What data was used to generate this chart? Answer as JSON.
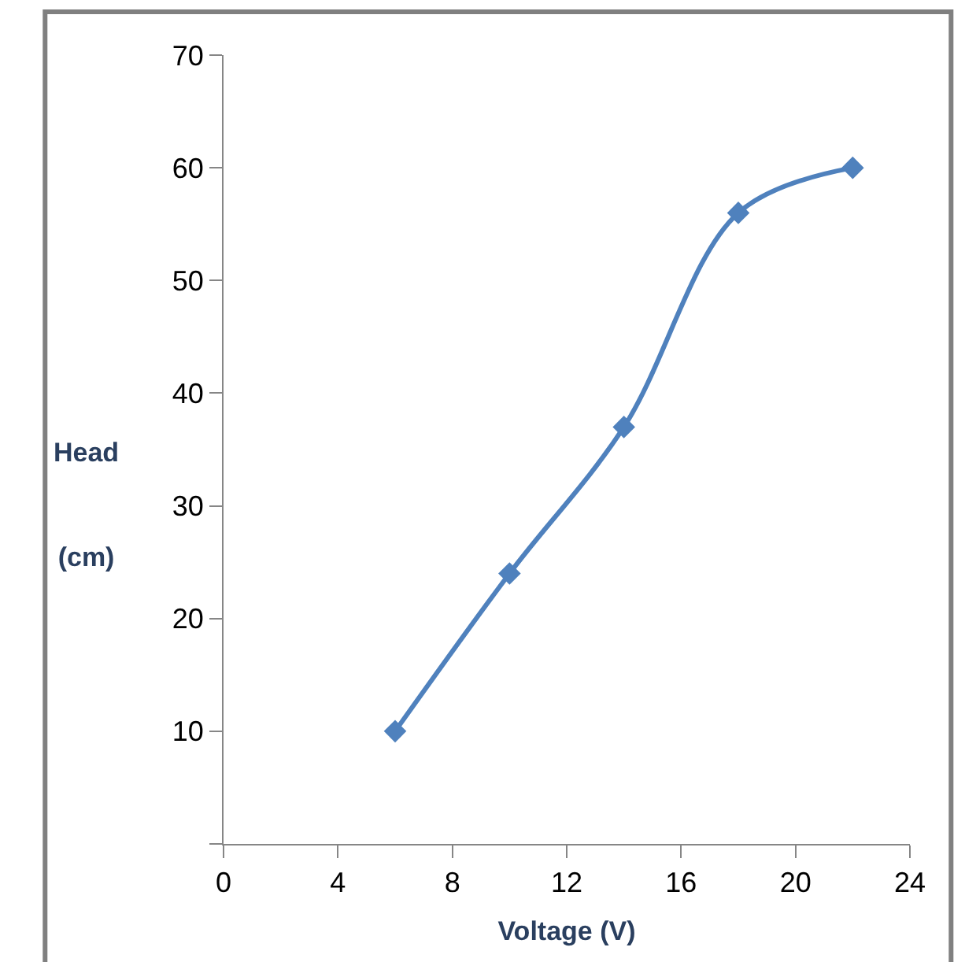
{
  "chart_data": {
    "type": "line",
    "xlabel": "Voltage (V)",
    "ylabel": "Head\n(cm)",
    "x": [
      6,
      10,
      14,
      18,
      22
    ],
    "series": [
      {
        "color": "#4f81bd",
        "values": [
          10,
          24,
          37,
          56,
          60
        ]
      }
    ],
    "xlim": [
      0,
      24
    ],
    "xticks": [
      0,
      4,
      8,
      12,
      16,
      20,
      24
    ],
    "ylim": [
      0,
      70
    ],
    "yticks": [
      {
        "value": 0,
        "label": null
      },
      10,
      20,
      30,
      40,
      50,
      60,
      70
    ],
    "marker": "diamond",
    "line_style": "solid"
  }
}
